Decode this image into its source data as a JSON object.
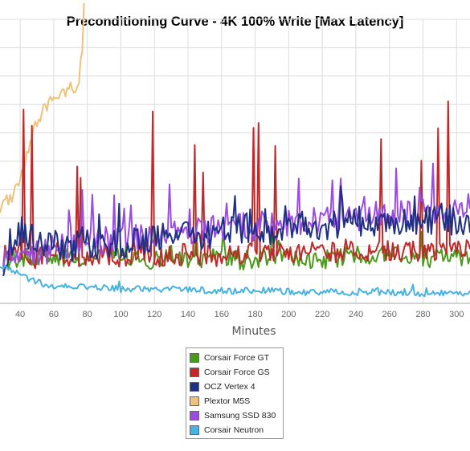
{
  "chart_data": {
    "type": "line",
    "title": "Preconditioning Curve - 4K 100% Write [Max Latency]",
    "xlabel": "Minutes",
    "ylabel": "",
    "x_ticks": [
      40,
      60,
      80,
      100,
      120,
      140,
      160,
      180,
      200,
      220,
      240,
      260,
      280,
      300
    ],
    "xlim": [
      28,
      308
    ],
    "ylim": [
      0,
      10
    ],
    "grid": true,
    "legend_position": "bottom-center",
    "series": [
      {
        "name": "Corsair Force GT",
        "color": "#4a9a1a",
        "points": [
          [
            30,
            1.6
          ],
          [
            40,
            1.5
          ],
          [
            50,
            1.7
          ],
          [
            60,
            1.6
          ],
          [
            70,
            1.6
          ],
          [
            80,
            1.7
          ],
          [
            90,
            1.6
          ],
          [
            100,
            1.8
          ],
          [
            110,
            1.6
          ],
          [
            120,
            1.5
          ],
          [
            130,
            1.7
          ],
          [
            140,
            1.6
          ],
          [
            150,
            1.6
          ],
          [
            160,
            1.7
          ],
          [
            170,
            1.5
          ],
          [
            180,
            1.6
          ],
          [
            190,
            1.7
          ],
          [
            200,
            1.6
          ],
          [
            210,
            1.6
          ],
          [
            220,
            1.5
          ],
          [
            230,
            1.6
          ],
          [
            240,
            1.7
          ],
          [
            250,
            1.6
          ],
          [
            260,
            1.6
          ],
          [
            270,
            1.7
          ],
          [
            280,
            1.6
          ],
          [
            290,
            1.6
          ],
          [
            300,
            1.6
          ],
          [
            308,
            1.7
          ]
        ]
      },
      {
        "name": "Corsair Force GS",
        "color": "#c0282a",
        "points": [
          [
            30,
            1.7
          ],
          [
            40,
            1.9
          ],
          [
            50,
            1.6
          ],
          [
            60,
            1.8
          ],
          [
            70,
            1.6
          ],
          [
            80,
            1.7
          ],
          [
            90,
            1.8
          ],
          [
            100,
            1.6
          ],
          [
            110,
            1.9
          ],
          [
            120,
            1.7
          ],
          [
            130,
            1.6
          ],
          [
            140,
            1.8
          ],
          [
            150,
            1.7
          ],
          [
            160,
            1.6
          ],
          [
            170,
            1.8
          ],
          [
            180,
            1.7
          ],
          [
            190,
            1.8
          ],
          [
            200,
            1.7
          ],
          [
            210,
            1.9
          ],
          [
            220,
            1.7
          ],
          [
            230,
            1.8
          ],
          [
            240,
            2.0
          ],
          [
            250,
            1.8
          ],
          [
            260,
            1.9
          ],
          [
            270,
            1.8
          ],
          [
            280,
            1.9
          ],
          [
            290,
            1.8
          ],
          [
            300,
            1.9
          ],
          [
            308,
            2.0
          ]
        ]
      },
      {
        "name": "OCZ Vertex 4",
        "color": "#1f2f82",
        "points": [
          [
            30,
            1.5
          ],
          [
            40,
            2.6
          ],
          [
            50,
            2.2
          ],
          [
            60,
            2.1
          ],
          [
            70,
            2.0
          ],
          [
            80,
            2.1
          ],
          [
            90,
            2.0
          ],
          [
            100,
            2.1
          ],
          [
            110,
            2.2
          ],
          [
            120,
            2.3
          ],
          [
            130,
            2.4
          ],
          [
            140,
            2.5
          ],
          [
            150,
            2.4
          ],
          [
            160,
            2.5
          ],
          [
            170,
            2.6
          ],
          [
            180,
            2.7
          ],
          [
            190,
            2.6
          ],
          [
            200,
            2.7
          ],
          [
            210,
            2.8
          ],
          [
            220,
            2.7
          ],
          [
            230,
            2.8
          ],
          [
            240,
            2.9
          ],
          [
            250,
            2.8
          ],
          [
            260,
            2.9
          ],
          [
            270,
            2.8
          ],
          [
            280,
            2.9
          ],
          [
            290,
            3.0
          ],
          [
            300,
            2.9
          ],
          [
            308,
            3.0
          ]
        ]
      },
      {
        "name": "Plextor M5S",
        "color": "#eec27a",
        "points": [
          [
            28,
            3.4
          ],
          [
            30,
            3.5
          ],
          [
            34,
            3.7
          ],
          [
            38,
            4.0
          ],
          [
            42,
            4.8
          ],
          [
            46,
            5.6
          ],
          [
            50,
            6.4
          ],
          [
            54,
            6.8
          ],
          [
            58,
            7.1
          ],
          [
            62,
            7.2
          ],
          [
            66,
            7.4
          ],
          [
            70,
            7.6
          ],
          [
            72,
            7.5
          ],
          [
            75,
            7.9
          ],
          [
            77,
            8.8
          ],
          [
            78,
            10.5
          ]
        ]
      },
      {
        "name": "Samsung SSD 830",
        "color": "#9b4be4",
        "points": [
          [
            30,
            1.6
          ],
          [
            40,
            1.8
          ],
          [
            50,
            1.8
          ],
          [
            60,
            1.9
          ],
          [
            70,
            2.0
          ],
          [
            80,
            2.1
          ],
          [
            90,
            2.2
          ],
          [
            100,
            2.2
          ],
          [
            110,
            2.3
          ],
          [
            120,
            2.4
          ],
          [
            130,
            2.5
          ],
          [
            140,
            2.5
          ],
          [
            150,
            2.6
          ],
          [
            160,
            2.6
          ],
          [
            170,
            2.7
          ],
          [
            180,
            2.7
          ],
          [
            190,
            2.8
          ],
          [
            200,
            2.8
          ],
          [
            210,
            2.9
          ],
          [
            220,
            2.9
          ],
          [
            230,
            3.0
          ],
          [
            240,
            3.0
          ],
          [
            250,
            3.1
          ],
          [
            260,
            3.1
          ],
          [
            270,
            3.2
          ],
          [
            280,
            3.2
          ],
          [
            290,
            3.3
          ],
          [
            300,
            3.3
          ],
          [
            308,
            3.4
          ]
        ]
      },
      {
        "name": "Corsair Neutron",
        "color": "#47b3e3",
        "points": [
          [
            28,
            1.4
          ],
          [
            32,
            1.2
          ],
          [
            36,
            1.1
          ],
          [
            40,
            1.0
          ],
          [
            44,
            0.9
          ],
          [
            48,
            0.8
          ],
          [
            52,
            0.7
          ],
          [
            56,
            0.65
          ],
          [
            60,
            0.6
          ],
          [
            70,
            0.6
          ],
          [
            80,
            0.55
          ],
          [
            90,
            0.55
          ],
          [
            100,
            0.5
          ],
          [
            110,
            0.5
          ],
          [
            120,
            0.5
          ],
          [
            130,
            0.5
          ],
          [
            140,
            0.5
          ],
          [
            150,
            0.45
          ],
          [
            160,
            0.45
          ],
          [
            170,
            0.45
          ],
          [
            180,
            0.45
          ],
          [
            190,
            0.45
          ],
          [
            200,
            0.4
          ],
          [
            210,
            0.4
          ],
          [
            220,
            0.4
          ],
          [
            230,
            0.4
          ],
          [
            240,
            0.4
          ],
          [
            250,
            0.4
          ],
          [
            260,
            0.4
          ],
          [
            270,
            0.4
          ],
          [
            280,
            0.35
          ],
          [
            290,
            0.35
          ],
          [
            300,
            0.35
          ],
          [
            308,
            0.35
          ]
        ]
      }
    ]
  }
}
